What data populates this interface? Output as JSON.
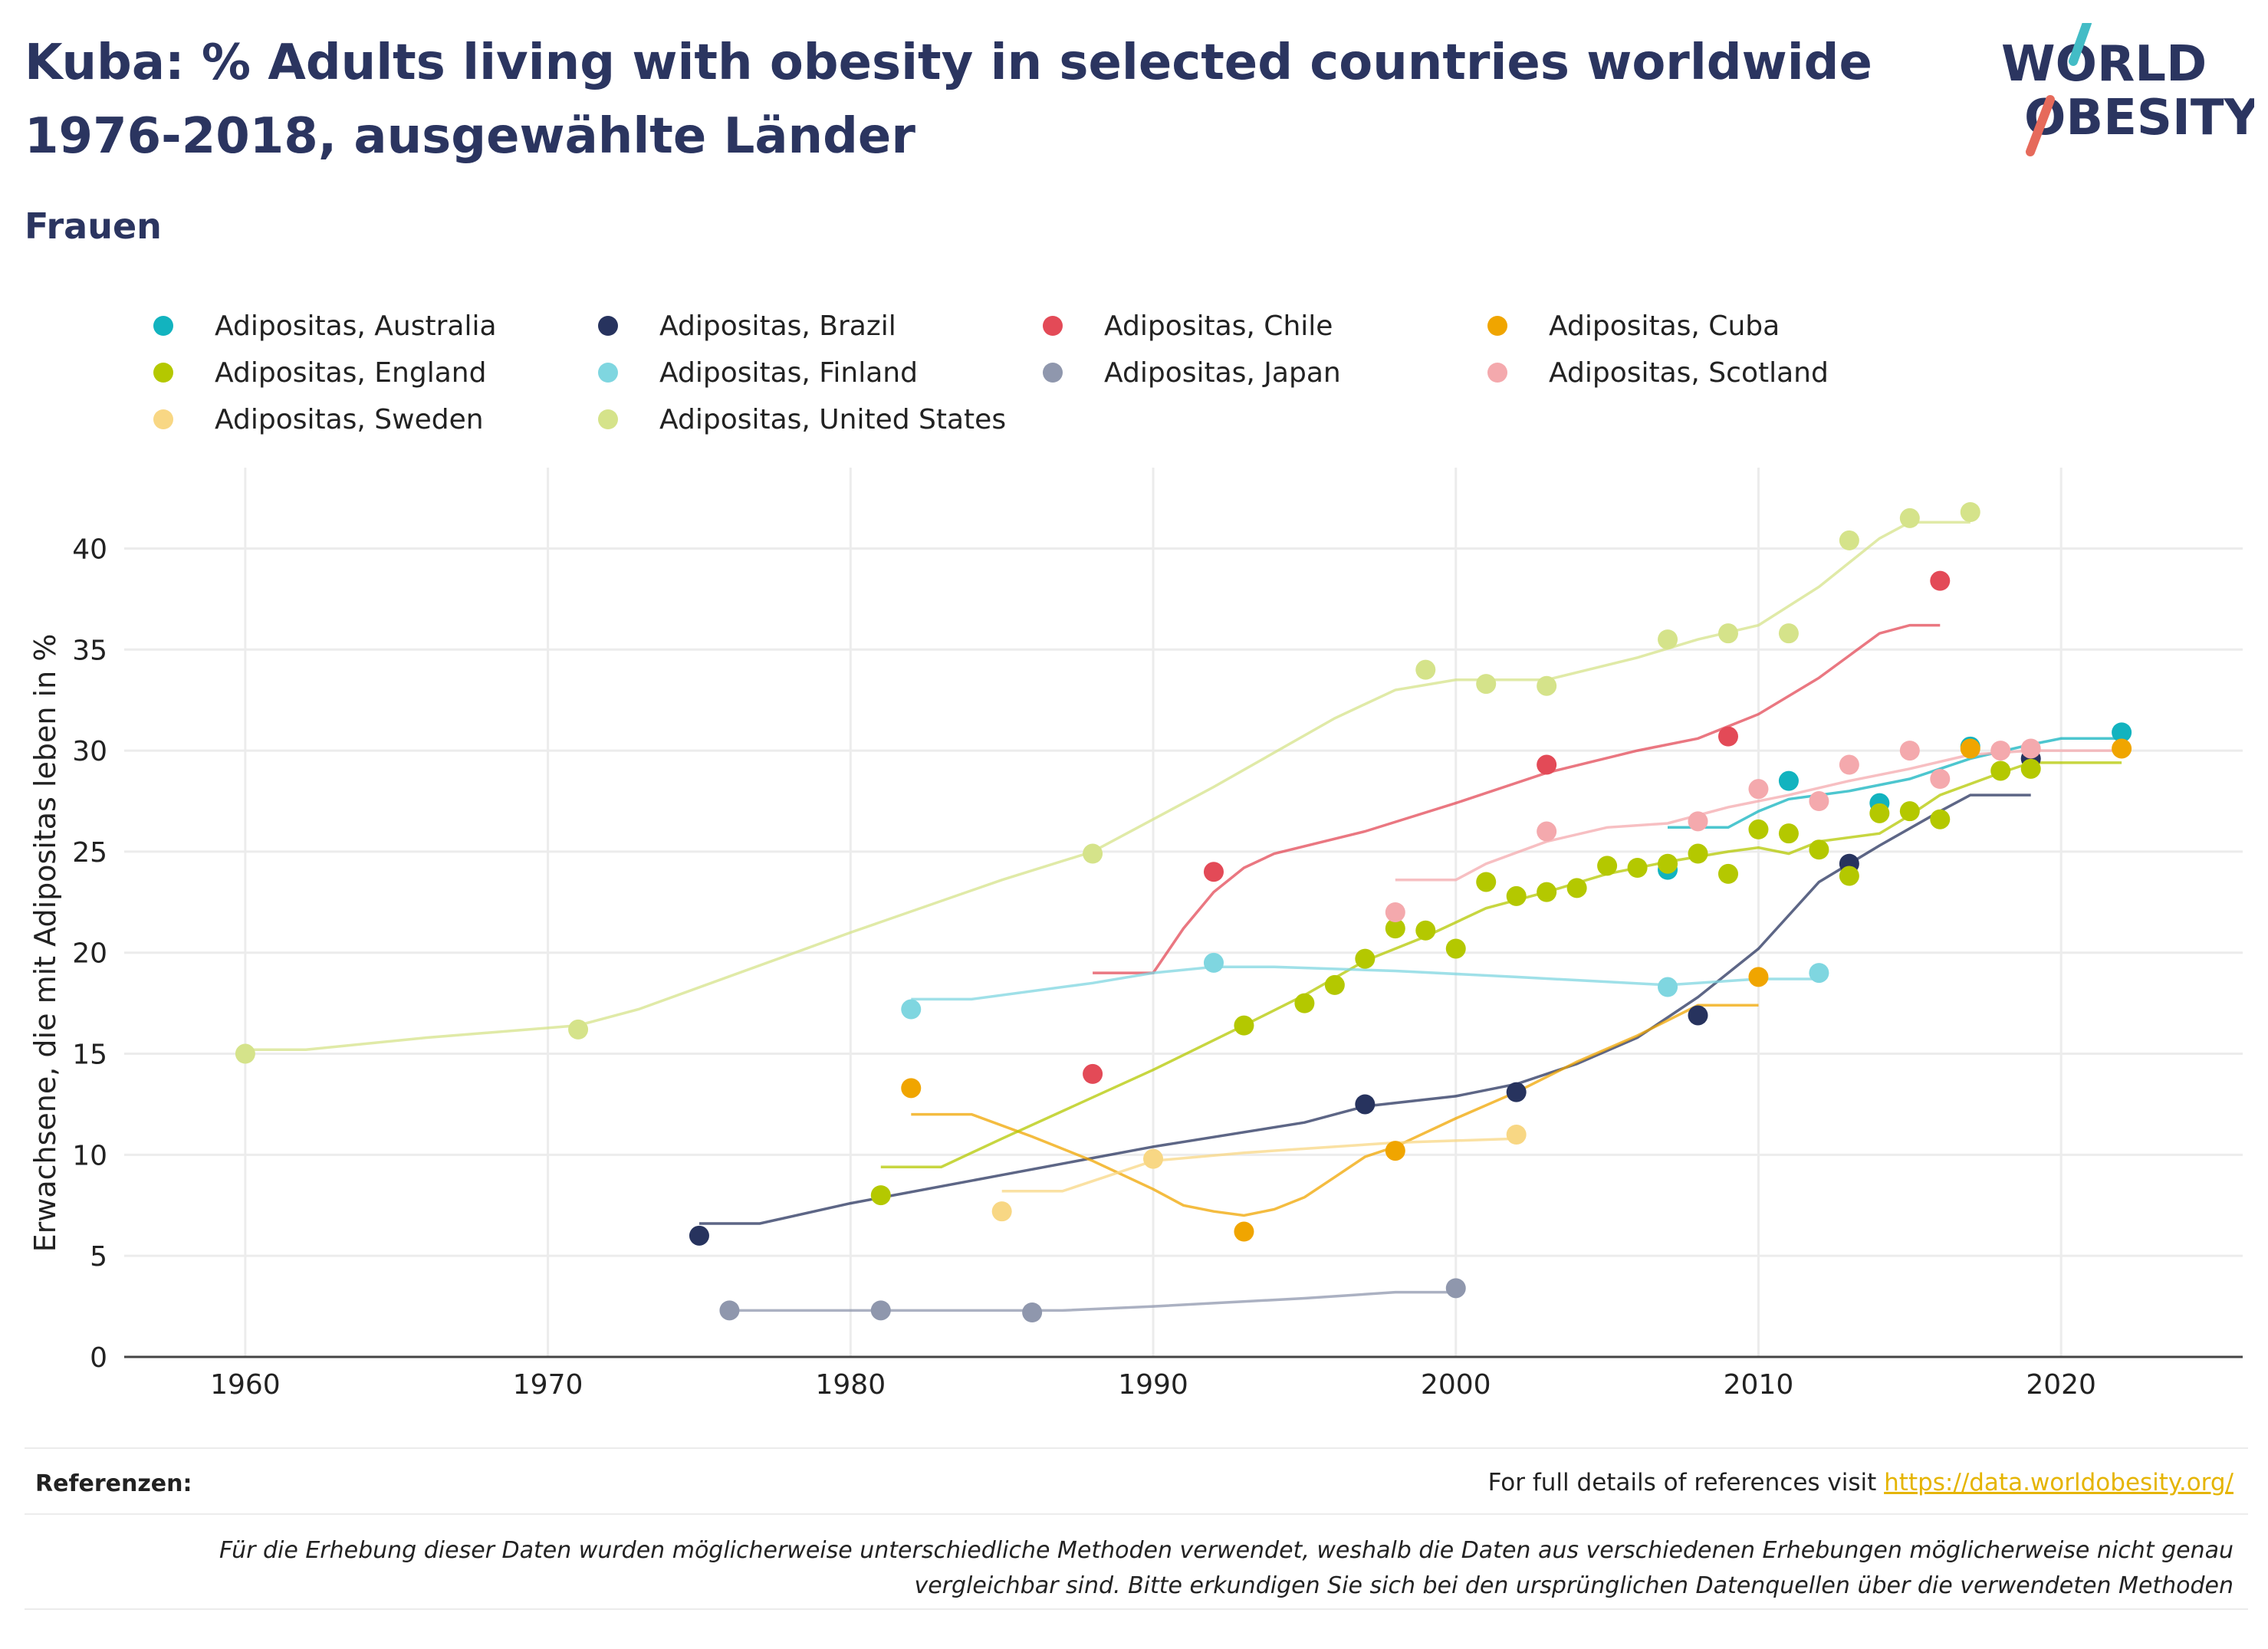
{
  "header": {
    "title": "Kuba: % Adults living with obesity in selected countries worldwide 1976-2018, ausgewählte Länder",
    "subtitle": "Frauen"
  },
  "logo": {
    "line1": "WORLD",
    "line2": "OBESITY",
    "accent1": "#43bcc6",
    "accent2": "#e66a5b",
    "text_color": "#2b3560"
  },
  "footer": {
    "references_label": "Referenzen:",
    "references_text": "For full details of references visit ",
    "references_link": "https://data.worldobesity.org/",
    "disclaimer_line1": "Für die Erhebung dieser Daten wurden möglicherweise unterschiedliche Methoden verwendet, weshalb die Daten aus verschiedenen Erhebungen möglicherweise nicht genau",
    "disclaimer_line2": "vergleichbar sind. Bitte erkundigen Sie sich bei den ursprünglichen Datenquellen über die verwendeten Methoden"
  },
  "chart_data": {
    "type": "scatter",
    "title": "Kuba: % Adults living with obesity in selected countries worldwide 1976-2018, ausgewählte Länder",
    "subtitle": "Frauen",
    "xlabel": "",
    "ylabel": "Erwachsene, die mit Adipositas leben in %",
    "xlim": [
      1956,
      2026
    ],
    "ylim": [
      0,
      44
    ],
    "x_ticks": [
      1960,
      1970,
      1980,
      1990,
      2000,
      2010,
      2020
    ],
    "y_ticks": [
      0,
      5,
      10,
      15,
      20,
      25,
      30,
      35,
      40
    ],
    "grid": true,
    "legend_position": "top",
    "series": [
      {
        "name": "Adipositas, Australia",
        "color": "#12b3bf",
        "points": [
          [
            2007,
            24.1
          ],
          [
            2011,
            28.5
          ],
          [
            2014,
            27.4
          ],
          [
            2017,
            30.2
          ],
          [
            2022,
            30.9
          ]
        ],
        "trend": [
          [
            2007,
            26.2
          ],
          [
            2009,
            26.2
          ],
          [
            2010,
            27.0
          ],
          [
            2011,
            27.6
          ],
          [
            2013,
            28.0
          ],
          [
            2015,
            28.6
          ],
          [
            2017,
            29.6
          ],
          [
            2019,
            30.3
          ],
          [
            2020,
            30.6
          ],
          [
            2022,
            30.6
          ]
        ]
      },
      {
        "name": "Adipositas, Brazil",
        "color": "#27335e",
        "points": [
          [
            1975,
            6.0
          ],
          [
            1997,
            12.5
          ],
          [
            2002,
            13.1
          ],
          [
            2008,
            16.9
          ],
          [
            2013,
            24.4
          ],
          [
            2019,
            29.6
          ]
        ],
        "trend": [
          [
            1975,
            6.6
          ],
          [
            1977,
            6.6
          ],
          [
            1980,
            7.6
          ],
          [
            1985,
            9.0
          ],
          [
            1990,
            10.4
          ],
          [
            1995,
            11.6
          ],
          [
            1997,
            12.4
          ],
          [
            2000,
            12.9
          ],
          [
            2002,
            13.5
          ],
          [
            2004,
            14.5
          ],
          [
            2006,
            15.8
          ],
          [
            2008,
            17.8
          ],
          [
            2010,
            20.2
          ],
          [
            2012,
            23.5
          ],
          [
            2014,
            25.3
          ],
          [
            2016,
            27.0
          ],
          [
            2017,
            27.8
          ],
          [
            2019,
            27.8
          ]
        ]
      },
      {
        "name": "Adipositas, Chile",
        "color": "#e34a57",
        "points": [
          [
            1988,
            14.0
          ],
          [
            1992,
            24.0
          ],
          [
            2003,
            29.3
          ],
          [
            2009,
            30.7
          ],
          [
            2016,
            38.4
          ]
        ],
        "trend": [
          [
            1988,
            19.0
          ],
          [
            1990,
            19.0
          ],
          [
            1991,
            21.2
          ],
          [
            1992,
            23.0
          ],
          [
            1993,
            24.2
          ],
          [
            1994,
            24.9
          ],
          [
            1997,
            26.0
          ],
          [
            2000,
            27.4
          ],
          [
            2003,
            28.9
          ],
          [
            2006,
            30.0
          ],
          [
            2008,
            30.6
          ],
          [
            2010,
            31.8
          ],
          [
            2012,
            33.6
          ],
          [
            2014,
            35.8
          ],
          [
            2015,
            36.2
          ],
          [
            2016,
            36.2
          ]
        ]
      },
      {
        "name": "Adipositas, Cuba",
        "color": "#f0a500",
        "points": [
          [
            1982,
            13.3
          ],
          [
            1993,
            6.2
          ],
          [
            1998,
            10.2
          ],
          [
            2010,
            18.8
          ],
          [
            2017,
            30.1
          ],
          [
            2022,
            30.1
          ]
        ],
        "trend": [
          [
            1982,
            12.0
          ],
          [
            1984,
            12.0
          ],
          [
            1986,
            10.9
          ],
          [
            1988,
            9.7
          ],
          [
            1990,
            8.3
          ],
          [
            1991,
            7.5
          ],
          [
            1992,
            7.2
          ],
          [
            1993,
            7.0
          ],
          [
            1994,
            7.3
          ],
          [
            1995,
            7.9
          ],
          [
            1996,
            8.9
          ],
          [
            1997,
            9.9
          ],
          [
            1998,
            10.4
          ],
          [
            2000,
            11.8
          ],
          [
            2002,
            13.1
          ],
          [
            2004,
            14.6
          ],
          [
            2006,
            15.9
          ],
          [
            2008,
            17.4
          ],
          [
            2010,
            17.4
          ]
        ]
      },
      {
        "name": "Adipositas, England",
        "color": "#b4c800",
        "points": [
          [
            1981,
            8.0
          ],
          [
            1993,
            16.4
          ],
          [
            1995,
            17.5
          ],
          [
            1996,
            18.4
          ],
          [
            1997,
            19.7
          ],
          [
            1998,
            21.2
          ],
          [
            1999,
            21.1
          ],
          [
            2000,
            20.2
          ],
          [
            2001,
            23.5
          ],
          [
            2002,
            22.8
          ],
          [
            2003,
            23.0
          ],
          [
            2004,
            23.2
          ],
          [
            2005,
            24.3
          ],
          [
            2006,
            24.2
          ],
          [
            2007,
            24.4
          ],
          [
            2008,
            24.9
          ],
          [
            2009,
            23.9
          ],
          [
            2010,
            26.1
          ],
          [
            2011,
            25.9
          ],
          [
            2012,
            25.1
          ],
          [
            2013,
            23.8
          ],
          [
            2014,
            26.9
          ],
          [
            2015,
            27.0
          ],
          [
            2016,
            26.6
          ],
          [
            2018,
            29.0
          ],
          [
            2019,
            29.1
          ]
        ],
        "trend": [
          [
            1981,
            9.4
          ],
          [
            1983,
            9.4
          ],
          [
            1985,
            10.8
          ],
          [
            1990,
            14.2
          ],
          [
            1993,
            16.4
          ],
          [
            1995,
            17.9
          ],
          [
            1997,
            19.6
          ],
          [
            1999,
            20.8
          ],
          [
            2001,
            22.2
          ],
          [
            2003,
            23.0
          ],
          [
            2005,
            23.9
          ],
          [
            2007,
            24.5
          ],
          [
            2009,
            25.0
          ],
          [
            2010,
            25.2
          ],
          [
            2011,
            24.9
          ],
          [
            2012,
            25.5
          ],
          [
            2014,
            25.9
          ],
          [
            2015,
            26.8
          ],
          [
            2016,
            27.8
          ],
          [
            2018,
            28.9
          ],
          [
            2019,
            29.4
          ],
          [
            2022,
            29.4
          ]
        ]
      },
      {
        "name": "Adipositas, Finland",
        "color": "#7fd6e0",
        "points": [
          [
            1982,
            17.2
          ],
          [
            1992,
            19.5
          ],
          [
            2007,
            18.3
          ],
          [
            2012,
            19.0
          ]
        ],
        "trend": [
          [
            1982,
            17.7
          ],
          [
            1984,
            17.7
          ],
          [
            1988,
            18.5
          ],
          [
            1990,
            19.0
          ],
          [
            1992,
            19.3
          ],
          [
            1994,
            19.3
          ],
          [
            1998,
            19.1
          ],
          [
            2002,
            18.8
          ],
          [
            2007,
            18.4
          ],
          [
            2010,
            18.7
          ],
          [
            2012,
            18.7
          ]
        ]
      },
      {
        "name": "Adipositas, Japan",
        "color": "#8f97ad",
        "points": [
          [
            1976,
            2.3
          ],
          [
            1981,
            2.3
          ],
          [
            1986,
            2.2
          ],
          [
            2000,
            3.4
          ]
        ],
        "trend": [
          [
            1976,
            2.3
          ],
          [
            1987,
            2.3
          ],
          [
            1990,
            2.5
          ],
          [
            1995,
            2.9
          ],
          [
            1998,
            3.2
          ],
          [
            2000,
            3.2
          ]
        ]
      },
      {
        "name": "Adipositas, Scotland",
        "color": "#f4a9ad",
        "points": [
          [
            1998,
            22.0
          ],
          [
            2003,
            26.0
          ],
          [
            2008,
            26.5
          ],
          [
            2010,
            28.1
          ],
          [
            2012,
            27.5
          ],
          [
            2013,
            29.3
          ],
          [
            2015,
            30.0
          ],
          [
            2016,
            28.6
          ],
          [
            2018,
            30.0
          ],
          [
            2019,
            30.1
          ]
        ],
        "trend": [
          [
            1998,
            23.6
          ],
          [
            2000,
            23.6
          ],
          [
            2001,
            24.4
          ],
          [
            2003,
            25.5
          ],
          [
            2005,
            26.2
          ],
          [
            2007,
            26.4
          ],
          [
            2009,
            27.2
          ],
          [
            2011,
            27.8
          ],
          [
            2013,
            28.5
          ],
          [
            2015,
            29.1
          ],
          [
            2017,
            29.8
          ],
          [
            2019,
            30.0
          ],
          [
            2022,
            30.0
          ]
        ]
      },
      {
        "name": "Adipositas, Sweden",
        "color": "#f8d784",
        "points": [
          [
            1985,
            7.2
          ],
          [
            1990,
            9.8
          ],
          [
            2002,
            11.0
          ]
        ],
        "trend": [
          [
            1985,
            8.2
          ],
          [
            1987,
            8.2
          ],
          [
            1990,
            9.7
          ],
          [
            1993,
            10.1
          ],
          [
            1998,
            10.6
          ],
          [
            2002,
            10.8
          ]
        ]
      },
      {
        "name": "Adipositas, United States",
        "color": "#d5e38a",
        "points": [
          [
            1960,
            15.0
          ],
          [
            1971,
            16.2
          ],
          [
            1988,
            24.9
          ],
          [
            1999,
            34.0
          ],
          [
            2001,
            33.3
          ],
          [
            2003,
            33.2
          ],
          [
            2007,
            35.5
          ],
          [
            2009,
            35.8
          ],
          [
            2011,
            35.8
          ],
          [
            2013,
            40.4
          ],
          [
            2015,
            41.5
          ],
          [
            2017,
            41.8
          ]
        ],
        "trend": [
          [
            1960,
            15.2
          ],
          [
            1962,
            15.2
          ],
          [
            1966,
            15.8
          ],
          [
            1971,
            16.4
          ],
          [
            1973,
            17.2
          ],
          [
            1980,
            21.0
          ],
          [
            1985,
            23.6
          ],
          [
            1988,
            25.0
          ],
          [
            1992,
            28.2
          ],
          [
            1996,
            31.6
          ],
          [
            1998,
            33.0
          ],
          [
            2000,
            33.5
          ],
          [
            2003,
            33.5
          ],
          [
            2006,
            34.6
          ],
          [
            2008,
            35.5
          ],
          [
            2010,
            36.2
          ],
          [
            2012,
            38.1
          ],
          [
            2014,
            40.5
          ],
          [
            2015,
            41.3
          ],
          [
            2017,
            41.3
          ]
        ]
      }
    ]
  }
}
